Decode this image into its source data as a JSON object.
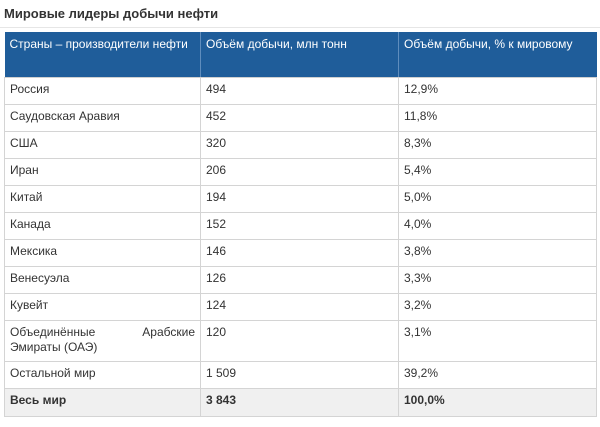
{
  "title": "Мировые лидеры добычи нефти",
  "table": {
    "headers": [
      "Страны – производители нефти",
      "Объём добычи, млн тонн",
      "Объём добычи, % к мировому"
    ],
    "rows": [
      {
        "country": "Россия",
        "volume": "494",
        "share": "12,9%"
      },
      {
        "country": "Саудовская Аравия",
        "volume": "452",
        "share": "11,8%"
      },
      {
        "country": "США",
        "volume": "320",
        "share": "8,3%"
      },
      {
        "country": "Иран",
        "volume": "206",
        "share": "5,4%"
      },
      {
        "country": "Китай",
        "volume": "194",
        "share": "5,0%"
      },
      {
        "country": "Канада",
        "volume": "152",
        "share": "4,0%"
      },
      {
        "country": "Мексика",
        "volume": "146",
        "share": "3,8%"
      },
      {
        "country": "Венесуэла",
        "volume": "126",
        "share": "3,3%"
      },
      {
        "country": "Кувейт",
        "volume": "124",
        "share": "3,2%"
      },
      {
        "country": "Объединённые Арабские Эмираты (ОАЭ)",
        "volume": "120",
        "share": "3,1%"
      },
      {
        "country": "Остальной мир",
        "volume": "1 509",
        "share": "39,2%"
      }
    ],
    "total": {
      "country": "Весь мир",
      "volume": "3 843",
      "share": "100,0%"
    }
  }
}
